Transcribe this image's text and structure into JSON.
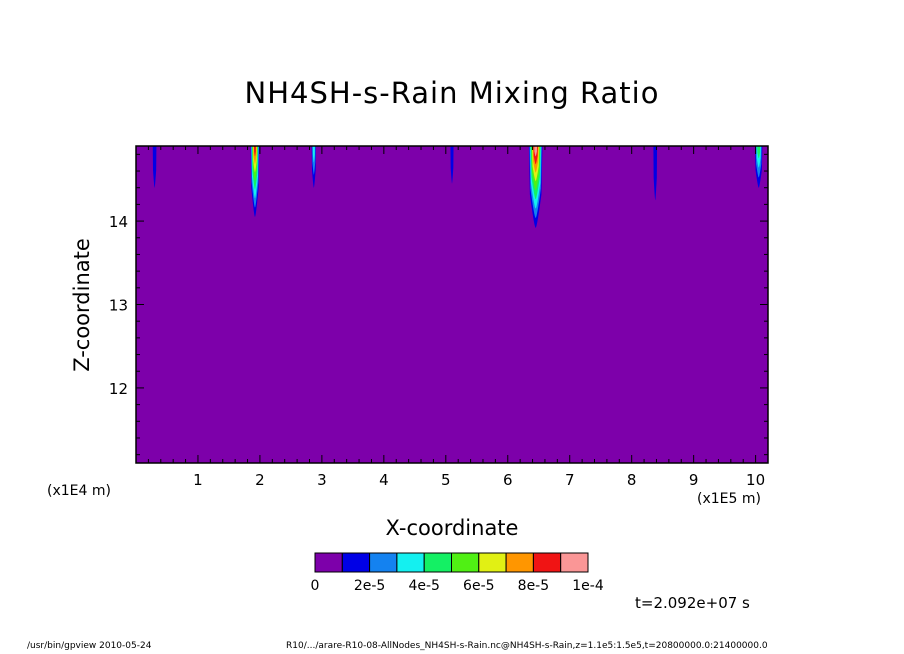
{
  "chart_data": {
    "type": "heatmap",
    "title": "NH4SH-s-Rain Mixing Ratio",
    "xlabel": "X-coordinate",
    "ylabel": "Z-coordinate",
    "x_scale_label": "(x1E4 m)",
    "y_scale_label": "(x1E5 m)",
    "xlim": [
      0,
      10.2
    ],
    "ylim": [
      11.1,
      14.9
    ],
    "x_ticks": [
      1,
      2,
      3,
      4,
      5,
      6,
      7,
      8,
      9,
      10
    ],
    "y_ticks": [
      12,
      13,
      14
    ],
    "background_value": 0,
    "colorbar": {
      "levels": [
        0,
        1e-05,
        2e-05,
        3e-05,
        4e-05,
        5e-05,
        6e-05,
        7e-05,
        8e-05,
        9e-05,
        0.0001
      ],
      "tick_labels": [
        "0",
        "2e-5",
        "4e-5",
        "6e-5",
        "8e-5",
        "1e-4"
      ],
      "colors": [
        "#7d00aa",
        "#0000e6",
        "#1482f0",
        "#14f0f0",
        "#14f064",
        "#50f014",
        "#e1f014",
        "#ff9600",
        "#f01414",
        "#fa9696"
      ]
    },
    "plumes": [
      {
        "x": 0.3,
        "bottom": 14.4,
        "width": 0.06,
        "peak": 1.5e-05
      },
      {
        "x": 1.92,
        "bottom": 14.05,
        "width": 0.14,
        "peak": 8.5e-05
      },
      {
        "x": 2.87,
        "bottom": 14.4,
        "width": 0.07,
        "peak": 3.5e-05
      },
      {
        "x": 5.1,
        "bottom": 14.45,
        "width": 0.05,
        "peak": 1.5e-05
      },
      {
        "x": 6.45,
        "bottom": 13.92,
        "width": 0.22,
        "peak": 9.5e-05
      },
      {
        "x": 8.38,
        "bottom": 14.25,
        "width": 0.06,
        "peak": 1.5e-05
      },
      {
        "x": 10.05,
        "bottom": 14.4,
        "width": 0.12,
        "peak": 4.5e-05
      }
    ]
  },
  "time_label": "t=2.092e+07 s",
  "footer": {
    "left": "/usr/bin/gpview   2010-05-24",
    "right": "R10/.../arare-R10-08-AllNodes_NH4SH-s-Rain.nc@NH4SH-s-Rain,z=1.1e5:1.5e5,t=20800000.0:21400000.0"
  }
}
